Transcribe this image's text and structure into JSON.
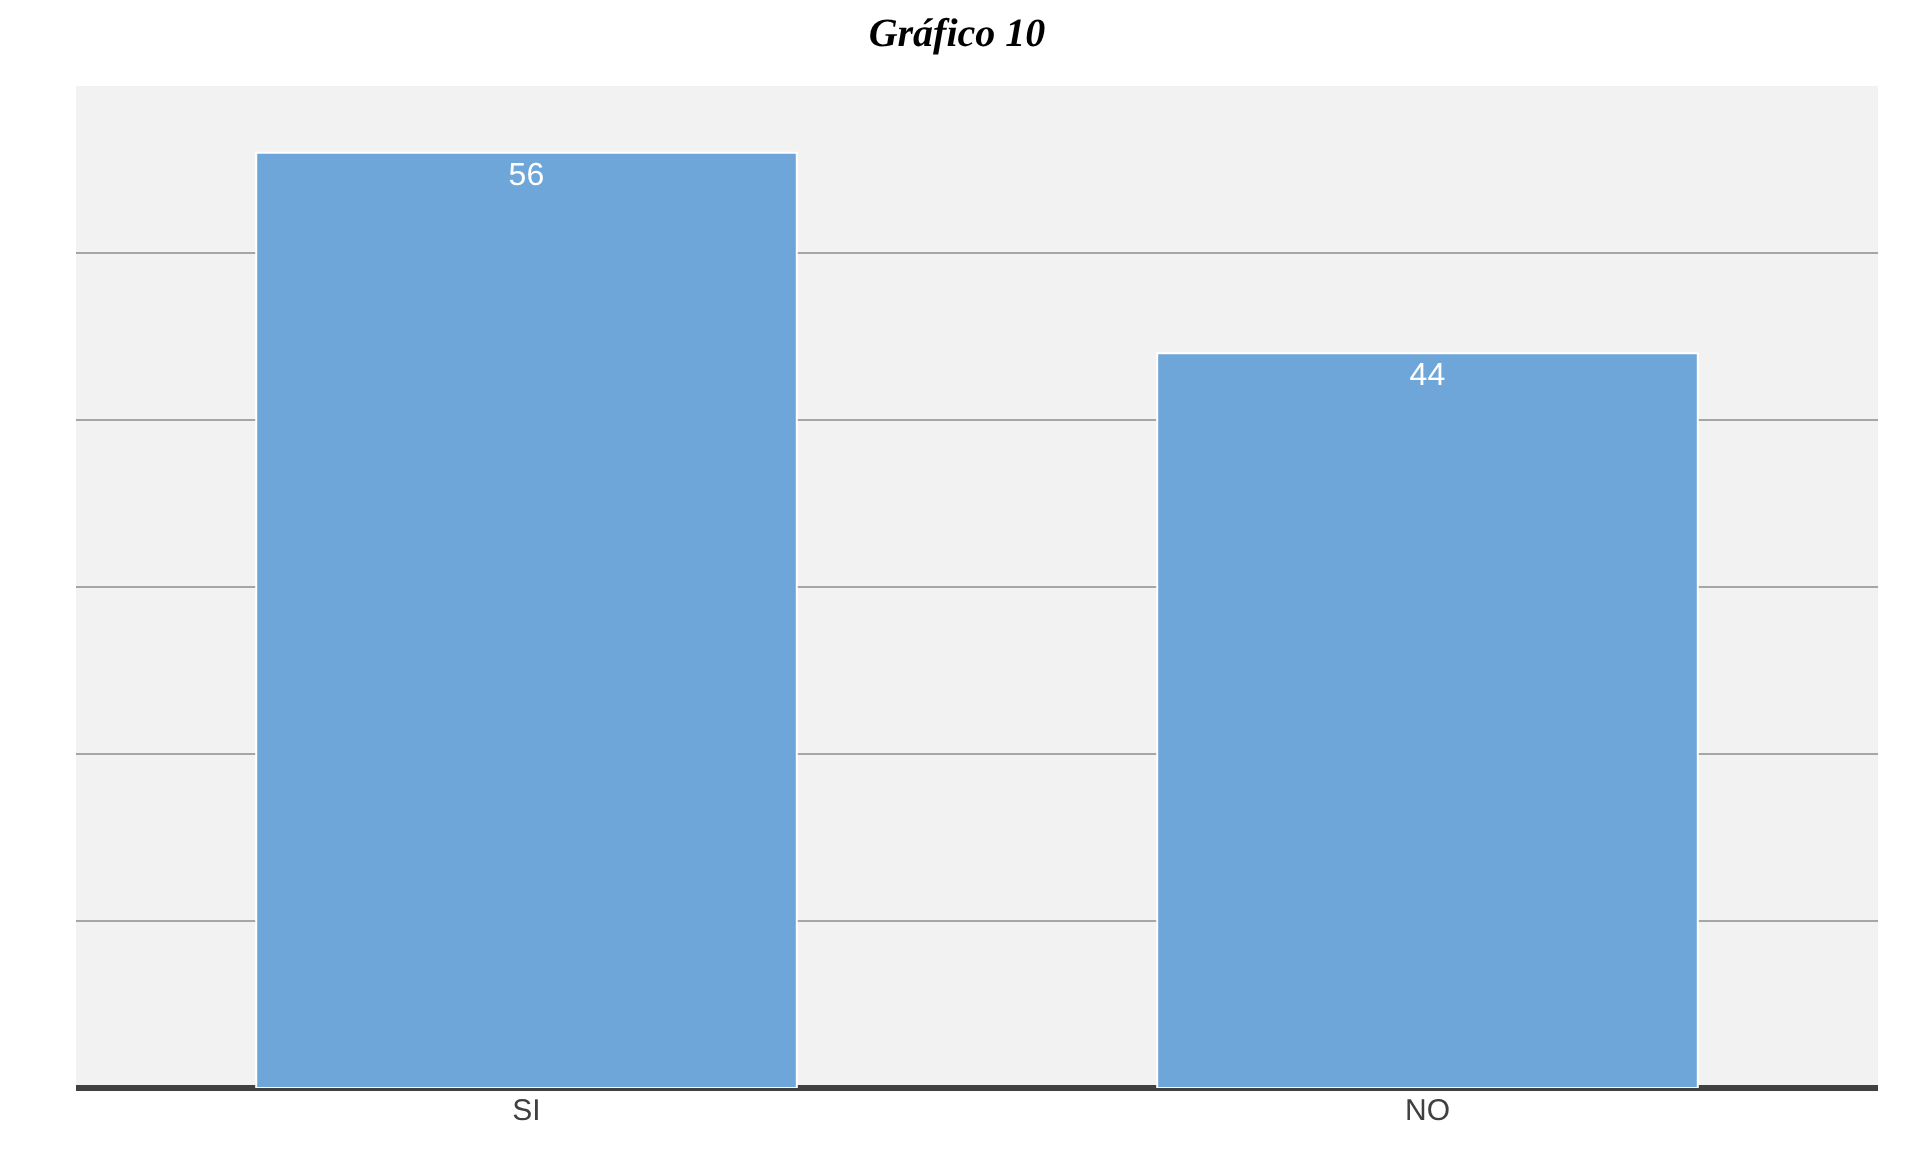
{
  "chart_data": {
    "type": "bar",
    "title": "Gráfico 10",
    "categories": [
      "SI",
      "NO"
    ],
    "values": [
      56,
      44
    ],
    "color": "#6fa6d9",
    "ylim": [
      0,
      60
    ],
    "yticks": [
      {
        "value": 0,
        "label": null
      },
      {
        "value": 10,
        "label": null
      },
      {
        "value": 20,
        "label": null
      },
      {
        "value": 30,
        "label": null
      },
      {
        "value": 40,
        "label": null
      },
      {
        "value": 50,
        "label": null
      },
      {
        "value": 60,
        "label": null
      }
    ],
    "grid": "y",
    "tick_labels": "x",
    "data_labels": true
  }
}
